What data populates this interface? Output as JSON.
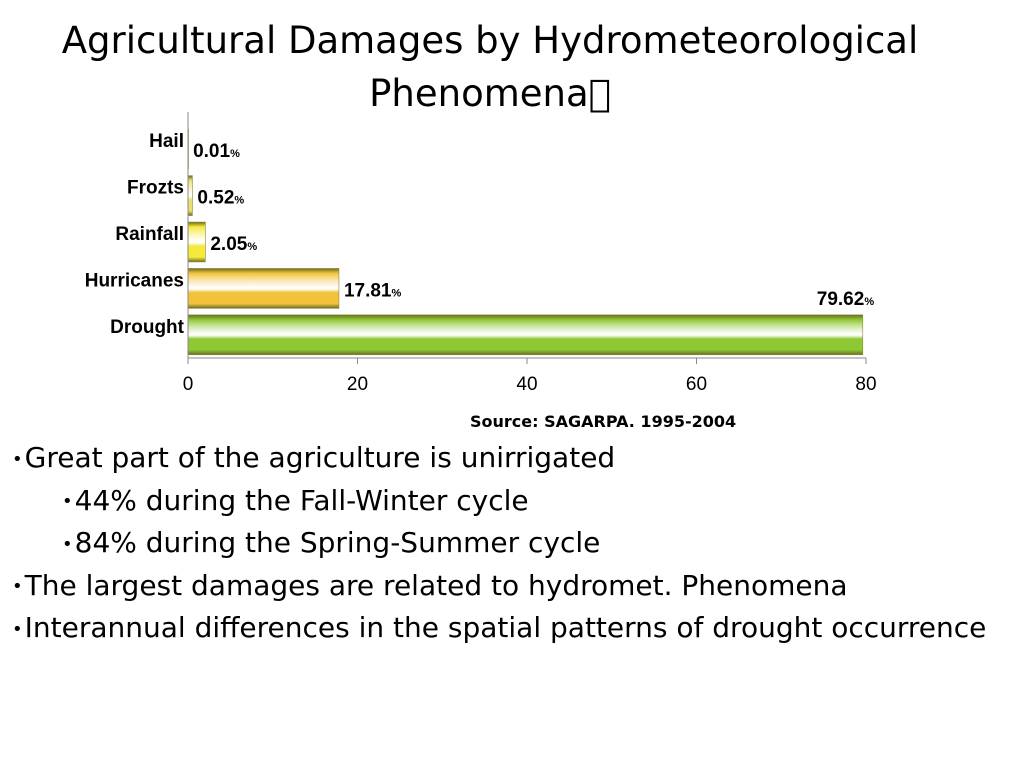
{
  "title_lines": [
    "Agricultural Damages by Hydrometeorological",
    "Phenomena\u0000"
  ],
  "source": "Source: SAGARPA. 1995-2004",
  "bullets": [
    {
      "text": "Great part of the agriculture is unirrigated",
      "level": 1
    },
    {
      "text": "44% during the Fall-Winter cycle",
      "level": 2
    },
    {
      "text": "84% during the Spring-Summer cycle",
      "level": 2
    },
    {
      "text": "The largest damages are related to hydromet. Phenomena",
      "level": 1
    },
    {
      "text": "Interannual differences in the spatial patterns of drought occurrence",
      "level": 1
    }
  ],
  "chart_data": {
    "type": "bar",
    "orientation": "horizontal",
    "categories": [
      "Hail",
      "Frozts",
      "Rainfall",
      "Hurricanes",
      "Drought"
    ],
    "values": [
      0.01,
      0.52,
      2.05,
      17.81,
      79.62
    ],
    "value_labels": [
      "0.01",
      "0.52",
      "2.05",
      "17.81",
      "79.62"
    ],
    "value_suffix": "%",
    "xlim": [
      0,
      80
    ],
    "xticks": [
      0,
      20,
      40,
      60,
      80
    ],
    "colors": [
      "#e8e070",
      "#e8e070",
      "#f5e93a",
      "#f2c33a",
      "#8ec832"
    ],
    "grid": false
  }
}
